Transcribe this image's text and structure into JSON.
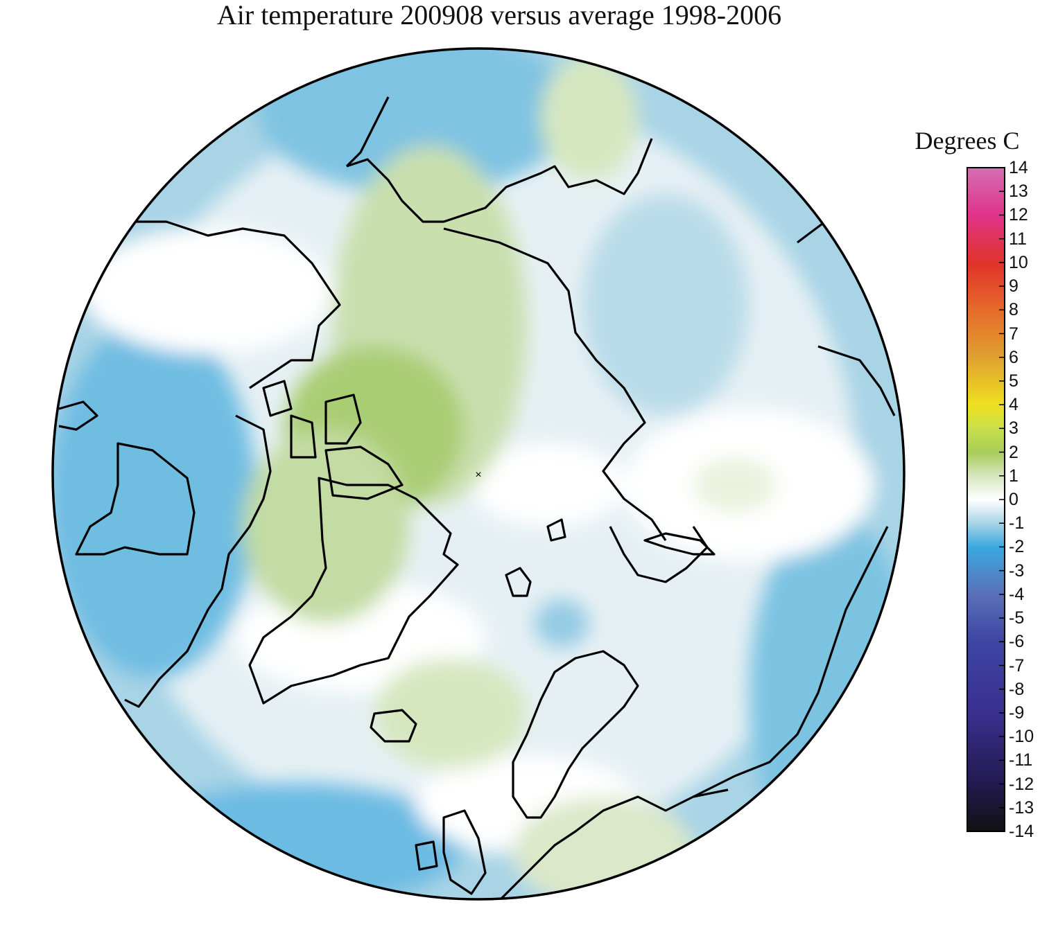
{
  "title": "Air temperature 200908 versus average 1998-2006",
  "legend": {
    "title": "Degrees C",
    "min": -14,
    "max": 14,
    "ticks": [
      "14",
      "13",
      "12",
      "11",
      "10",
      "9",
      "8",
      "7",
      "6",
      "5",
      "4",
      "3",
      "2",
      "1",
      "0",
      "-1",
      "-2",
      "-3",
      "-4",
      "-5",
      "-6",
      "-7",
      "-8",
      "-9",
      "-10",
      "-11",
      "-12",
      "-13",
      "-14"
    ],
    "color_stops": [
      {
        "value": 14,
        "color": "#d56fb2"
      },
      {
        "value": 12,
        "color": "#e0338a"
      },
      {
        "value": 10,
        "color": "#e0332b"
      },
      {
        "value": 8,
        "color": "#e66a2a"
      },
      {
        "value": 6,
        "color": "#e0a030"
      },
      {
        "value": 4,
        "color": "#efe020"
      },
      {
        "value": 3,
        "color": "#c9e04a"
      },
      {
        "value": 2,
        "color": "#a9cd59"
      },
      {
        "value": 1,
        "color": "#d6e6bf"
      },
      {
        "value": 0,
        "color": "#ffffff"
      },
      {
        "value": -1,
        "color": "#a8d4e6"
      },
      {
        "value": -2,
        "color": "#3aa9e0"
      },
      {
        "value": -4,
        "color": "#5a6fb8"
      },
      {
        "value": -6,
        "color": "#3d45a3"
      },
      {
        "value": -9,
        "color": "#3a2f8f"
      },
      {
        "value": -12,
        "color": "#221a4f"
      },
      {
        "value": -14,
        "color": "#111111"
      }
    ]
  },
  "map": {
    "projection": "north polar stereographic",
    "pole_marker": "×"
  }
}
